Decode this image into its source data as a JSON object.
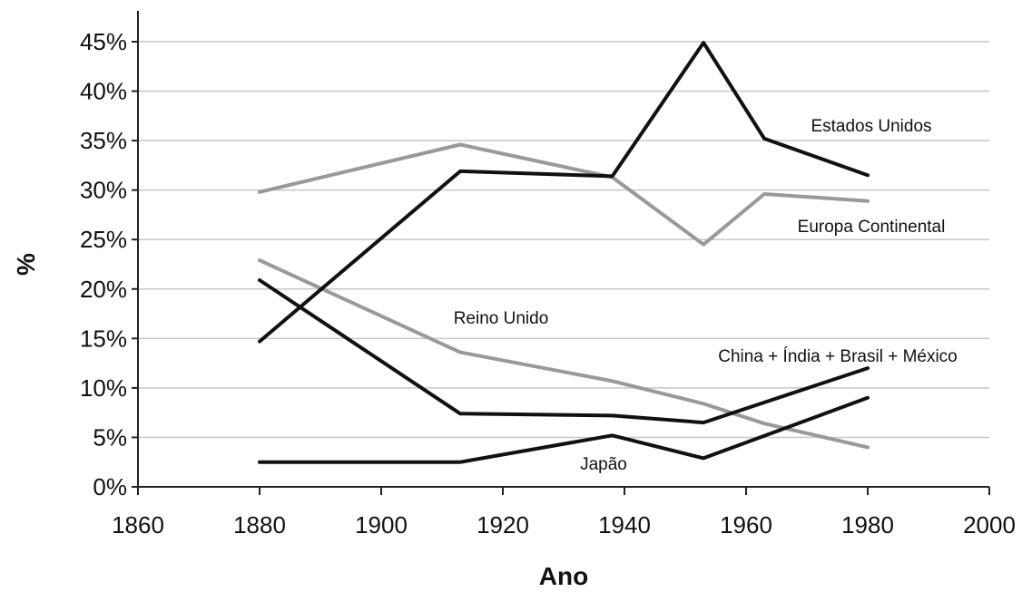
{
  "chart_data": {
    "type": "line",
    "title": "",
    "xlabel": "Ano",
    "ylabel": "%",
    "xlim": [
      1860,
      2000
    ],
    "ylim": [
      0,
      45
    ],
    "x_ticks": [
      1860,
      1880,
      1900,
      1920,
      1940,
      1960,
      1980,
      2000
    ],
    "y_ticks": [
      0,
      5,
      10,
      15,
      20,
      25,
      30,
      35,
      40,
      45
    ],
    "y_tick_labels": [
      "0%",
      "5%",
      "10%",
      "15%",
      "20%",
      "25%",
      "30%",
      "35%",
      "40%",
      "45%"
    ],
    "grid": "horizontal",
    "legend": "none (series labeled directly on lines)",
    "series": [
      {
        "name": "Estados Unidos",
        "color": "#111111",
        "points": [
          [
            1880,
            14.7
          ],
          [
            1913,
            31.9
          ],
          [
            1938,
            31.4
          ],
          [
            1953,
            44.9
          ],
          [
            1963,
            35.2
          ],
          [
            1980,
            31.5
          ]
        ]
      },
      {
        "name": "Europa Continental",
        "color": "#999999",
        "points": [
          [
            1880,
            29.8
          ],
          [
            1913,
            34.6
          ],
          [
            1938,
            31.3
          ],
          [
            1953,
            24.5
          ],
          [
            1963,
            29.6
          ],
          [
            1980,
            28.9
          ]
        ]
      },
      {
        "name": "Reino Unido",
        "color": "#999999",
        "points": [
          [
            1880,
            22.9
          ],
          [
            1913,
            13.6
          ],
          [
            1938,
            10.7
          ],
          [
            1953,
            8.4
          ],
          [
            1963,
            6.4
          ],
          [
            1980,
            4.0
          ]
        ]
      },
      {
        "name": "China + Índia + Brasil + México",
        "color": "#111111",
        "points": [
          [
            1880,
            20.9
          ],
          [
            1913,
            7.4
          ],
          [
            1938,
            7.2
          ],
          [
            1953,
            6.5
          ],
          [
            1980,
            12.0
          ]
        ]
      },
      {
        "name": "Japão",
        "color": "#111111",
        "points": [
          [
            1880,
            2.5
          ],
          [
            1913,
            2.5
          ],
          [
            1938,
            5.2
          ],
          [
            1953,
            2.9
          ],
          [
            1980,
            9.0
          ]
        ]
      }
    ]
  }
}
